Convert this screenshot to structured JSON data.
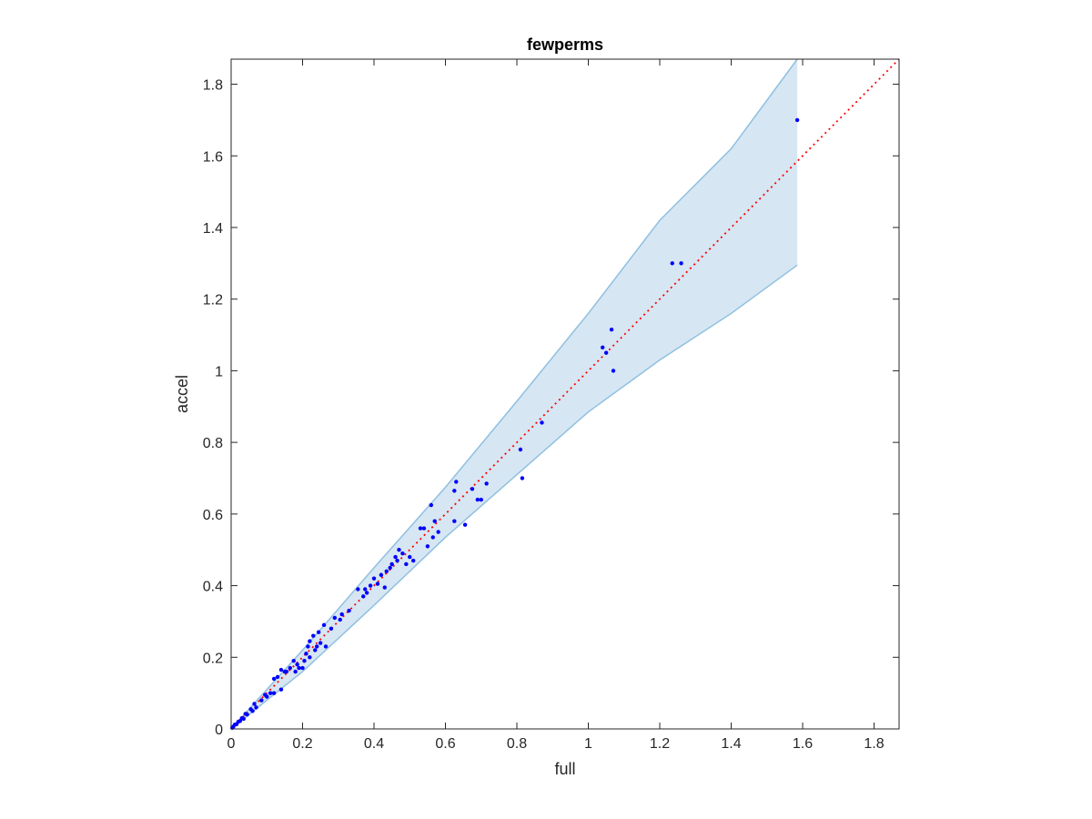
{
  "chart_data": {
    "type": "scatter",
    "title": "fewperms",
    "xlabel": "full",
    "ylabel": "accel",
    "xlim": [
      0,
      1.87
    ],
    "ylim": [
      0,
      1.87
    ],
    "x_ticks": [
      "0",
      "0.2",
      "0.4",
      "0.6",
      "0.8",
      "1",
      "1.2",
      "1.4",
      "1.6",
      "1.8"
    ],
    "y_ticks": [
      "0",
      "0.2",
      "0.4",
      "0.6",
      "0.8",
      "1",
      "1.2",
      "1.4",
      "1.6",
      "1.8"
    ],
    "x_tick_values": [
      0,
      0.2,
      0.4,
      0.6,
      0.8,
      1.0,
      1.2,
      1.4,
      1.6,
      1.8
    ],
    "y_tick_values": [
      0,
      0.2,
      0.4,
      0.6,
      0.8,
      1.0,
      1.2,
      1.4,
      1.6,
      1.8
    ],
    "grid": false,
    "reference_line": {
      "style": "dotted",
      "color": "#ff0000",
      "from": [
        0,
        0
      ],
      "to": [
        1.87,
        1.87
      ]
    },
    "band": {
      "color": "#d6e6f3",
      "edge_color": "#8fc0e0",
      "x_end": 1.585,
      "upper": [
        [
          0,
          0
        ],
        [
          0.2,
          0.22
        ],
        [
          0.4,
          0.45
        ],
        [
          0.6,
          0.675
        ],
        [
          0.8,
          0.915
        ],
        [
          1.0,
          1.16
        ],
        [
          1.2,
          1.42
        ],
        [
          1.4,
          1.62
        ],
        [
          1.585,
          1.87
        ]
      ],
      "lower": [
        [
          0,
          0
        ],
        [
          0.2,
          0.16
        ],
        [
          0.4,
          0.345
        ],
        [
          0.6,
          0.535
        ],
        [
          0.8,
          0.71
        ],
        [
          1.0,
          0.885
        ],
        [
          1.2,
          1.03
        ],
        [
          1.4,
          1.16
        ],
        [
          1.585,
          1.295
        ]
      ]
    },
    "series": [
      {
        "color": "#0000ff",
        "points": [
          [
            0.003,
            0.003
          ],
          [
            0.006,
            0.006
          ],
          [
            0.01,
            0.012
          ],
          [
            0.015,
            0.013
          ],
          [
            0.02,
            0.02
          ],
          [
            0.025,
            0.022
          ],
          [
            0.03,
            0.03
          ],
          [
            0.035,
            0.028
          ],
          [
            0.04,
            0.042
          ],
          [
            0.045,
            0.04
          ],
          [
            0.055,
            0.055
          ],
          [
            0.06,
            0.05
          ],
          [
            0.065,
            0.07
          ],
          [
            0.07,
            0.06
          ],
          [
            0.085,
            0.08
          ],
          [
            0.095,
            0.095
          ],
          [
            0.1,
            0.09
          ],
          [
            0.11,
            0.1
          ],
          [
            0.12,
            0.1
          ],
          [
            0.12,
            0.14
          ],
          [
            0.13,
            0.145
          ],
          [
            0.14,
            0.11
          ],
          [
            0.14,
            0.165
          ],
          [
            0.15,
            0.16
          ],
          [
            0.155,
            0.16
          ],
          [
            0.165,
            0.17
          ],
          [
            0.175,
            0.19
          ],
          [
            0.18,
            0.16
          ],
          [
            0.185,
            0.18
          ],
          [
            0.19,
            0.17
          ],
          [
            0.2,
            0.17
          ],
          [
            0.205,
            0.19
          ],
          [
            0.21,
            0.21
          ],
          [
            0.215,
            0.23
          ],
          [
            0.22,
            0.2
          ],
          [
            0.22,
            0.245
          ],
          [
            0.23,
            0.26
          ],
          [
            0.235,
            0.22
          ],
          [
            0.24,
            0.23
          ],
          [
            0.245,
            0.27
          ],
          [
            0.25,
            0.24
          ],
          [
            0.26,
            0.29
          ],
          [
            0.265,
            0.23
          ],
          [
            0.28,
            0.28
          ],
          [
            0.29,
            0.31
          ],
          [
            0.305,
            0.305
          ],
          [
            0.31,
            0.32
          ],
          [
            0.33,
            0.33
          ],
          [
            0.355,
            0.39
          ],
          [
            0.37,
            0.37
          ],
          [
            0.375,
            0.39
          ],
          [
            0.38,
            0.38
          ],
          [
            0.39,
            0.4
          ],
          [
            0.4,
            0.42
          ],
          [
            0.41,
            0.405
          ],
          [
            0.42,
            0.43
          ],
          [
            0.43,
            0.395
          ],
          [
            0.435,
            0.44
          ],
          [
            0.445,
            0.45
          ],
          [
            0.45,
            0.46
          ],
          [
            0.46,
            0.48
          ],
          [
            0.465,
            0.47
          ],
          [
            0.47,
            0.5
          ],
          [
            0.48,
            0.49
          ],
          [
            0.49,
            0.46
          ],
          [
            0.5,
            0.48
          ],
          [
            0.51,
            0.47
          ],
          [
            0.53,
            0.56
          ],
          [
            0.54,
            0.56
          ],
          [
            0.55,
            0.51
          ],
          [
            0.56,
            0.625
          ],
          [
            0.565,
            0.535
          ],
          [
            0.57,
            0.58
          ],
          [
            0.58,
            0.55
          ],
          [
            0.625,
            0.665
          ],
          [
            0.625,
            0.58
          ],
          [
            0.63,
            0.69
          ],
          [
            0.655,
            0.57
          ],
          [
            0.675,
            0.67
          ],
          [
            0.69,
            0.64
          ],
          [
            0.7,
            0.64
          ],
          [
            0.715,
            0.685
          ],
          [
            0.81,
            0.78
          ],
          [
            0.815,
            0.7
          ],
          [
            0.87,
            0.855
          ],
          [
            1.04,
            1.065
          ],
          [
            1.05,
            1.05
          ],
          [
            1.065,
            1.115
          ],
          [
            1.07,
            1.0
          ],
          [
            1.235,
            1.3
          ],
          [
            1.26,
            1.3
          ],
          [
            1.585,
            1.7
          ]
        ]
      }
    ]
  }
}
